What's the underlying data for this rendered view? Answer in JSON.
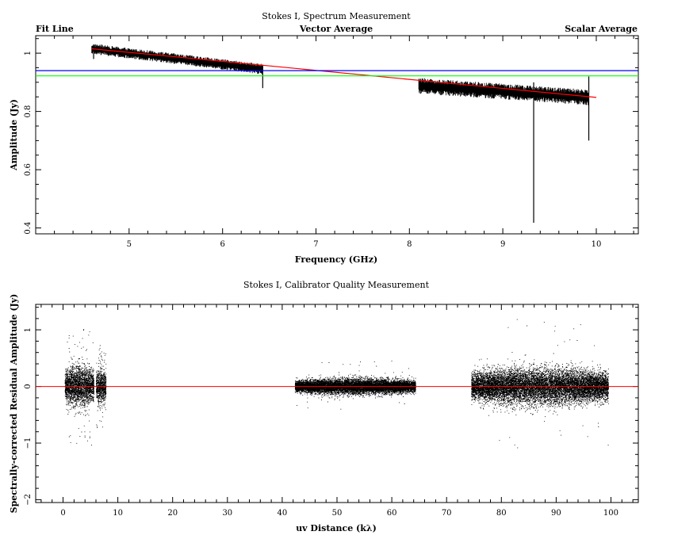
{
  "colors": {
    "fit": "#ff0000",
    "vector": "#00ff00",
    "scalar": "#0000ff",
    "data": "#000000"
  },
  "chart_data": [
    {
      "type": "line",
      "title": "Stokes I, Spectrum Measurement",
      "xlabel": "Frequency (GHz)",
      "ylabel": "Amplitude (Jy)",
      "xlim": [
        4.0,
        10.45
      ],
      "ylim": [
        0.38,
        1.06
      ],
      "xticks": [
        "5",
        "6",
        "7",
        "8",
        "9",
        "10"
      ],
      "yticks": [
        "0.4",
        "0.6",
        "0.8",
        "1"
      ],
      "legend": {
        "placement": "top",
        "entries": [
          "Fit Line",
          "Vector Average",
          "Scalar Average"
        ]
      },
      "series": [
        {
          "name": "Fit Line",
          "color": "#ff0000",
          "x": [
            4.6,
            10.0
          ],
          "y": [
            1.015,
            0.848
          ]
        },
        {
          "name": "Vector Average",
          "color": "#00ff00",
          "x": [
            4.0,
            10.45
          ],
          "y": [
            0.922,
            0.922
          ]
        },
        {
          "name": "Scalar Average",
          "color": "#0000ff",
          "x": [
            4.0,
            10.45
          ],
          "y": [
            0.94,
            0.94
          ]
        }
      ],
      "data_bands": [
        {
          "x_start": 4.6,
          "x_end": 6.43,
          "center_start": 1.015,
          "center_end": 0.945,
          "spread": 0.012
        },
        {
          "x_start": 8.1,
          "x_end": 9.92,
          "center_start": 0.888,
          "center_end": 0.848,
          "spread": 0.018
        }
      ],
      "spikes": [
        {
          "x": 9.33,
          "low": 0.418,
          "high": 0.9
        },
        {
          "x": 6.43,
          "low": 0.88,
          "high": 0.96
        },
        {
          "x": 9.92,
          "low": 0.7,
          "high": 0.92
        },
        {
          "x": 4.62,
          "low": 0.98,
          "high": 1.03
        }
      ]
    },
    {
      "type": "scatter",
      "title": "Stokes I, Calibrator Quality Measurement",
      "xlabel": "uv Distance (kλ)",
      "ylabel": "Spectrally-corrected Residual Amplitude (Jy)",
      "xlim": [
        -5,
        105
      ],
      "ylim": [
        -2.05,
        1.45
      ],
      "xticks": [
        "0",
        "10",
        "20",
        "30",
        "40",
        "50",
        "60",
        "70",
        "80",
        "90",
        "100"
      ],
      "yticks": [
        "−2",
        "−1",
        "0",
        "1"
      ],
      "fit_line": {
        "color": "#ff0000",
        "y": 0
      },
      "clusters": [
        {
          "x_min": 0.3,
          "x_max": 5.6,
          "spread": 0.28,
          "extreme": 1.05
        },
        {
          "x_min": 6.0,
          "x_max": 7.8,
          "spread": 0.22,
          "extreme": 0.75
        },
        {
          "x_min": 42.3,
          "x_max": 64.3,
          "spread": 0.1,
          "extreme": 0.46
        },
        {
          "x_min": 74.5,
          "x_max": 99.5,
          "spread": 0.24,
          "extreme": 1.2
        }
      ]
    }
  ]
}
